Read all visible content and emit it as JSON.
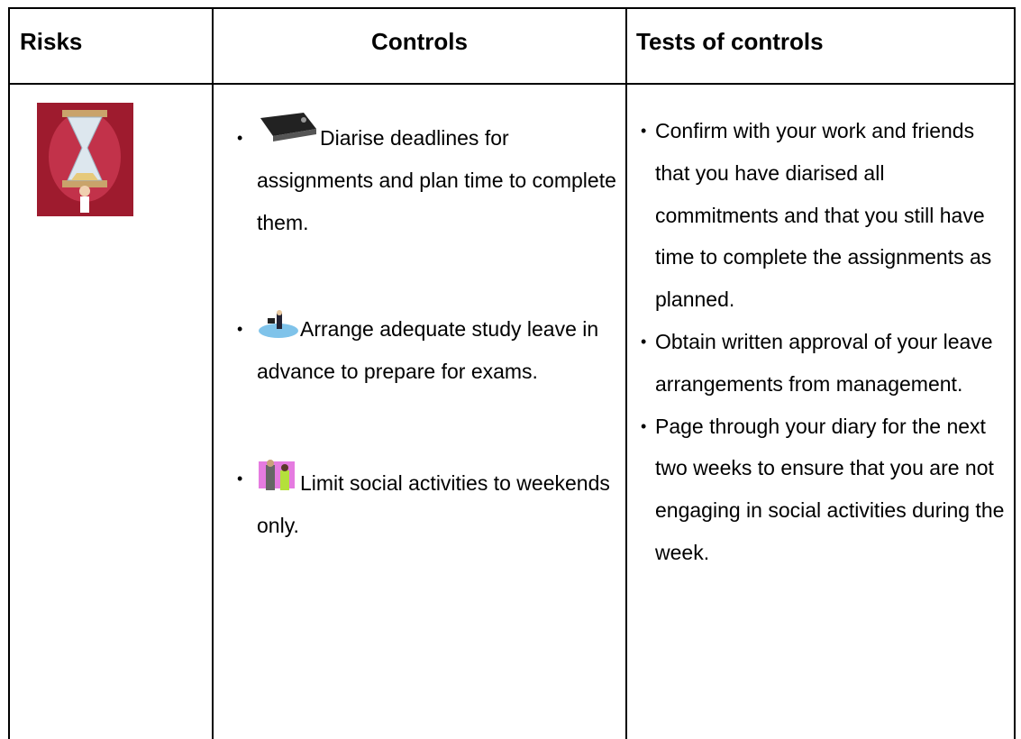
{
  "header": {
    "columns": [
      "Risks",
      "Controls",
      "Tests of controls"
    ]
  },
  "controls": [
    "Diarise deadlines for assignments and plan time to complete them.",
    "Arrange adequate study leave in advance to prepare for exams.",
    "Limit social activities to weekends only."
  ],
  "tests": [
    "Confirm with your work and friends that you have diarised all commitments and that you still have time to complete the assignments as planned.",
    "Obtain written approval of your leave arrangements from management.",
    "Page through your diary for the next two weeks to ensure that you are not engaging in social activities during the week."
  ]
}
